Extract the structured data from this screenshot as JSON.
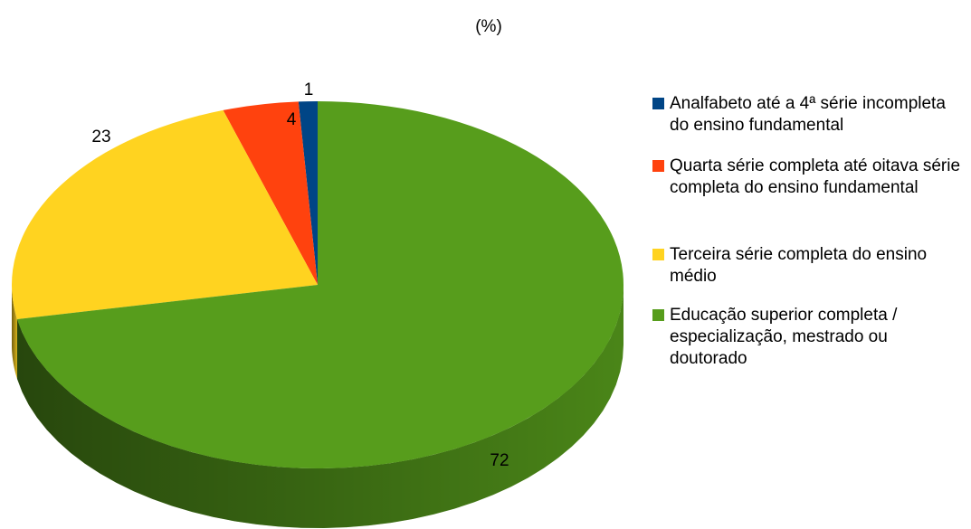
{
  "chart_data": {
    "type": "pie3d",
    "title": "(%)",
    "categories": [
      "Analfabeto até a 4ª série incompleta do ensino fundamental",
      "Quarta série completa até oitava série completa do ensino fundamental",
      "Terceira série completa do ensino médio",
      "Educação superior completa / especialização, mestrado ou doutorado"
    ],
    "values": [
      1,
      4,
      23,
      72
    ],
    "colors": [
      "#004586",
      "#ff420e",
      "#ffd320",
      "#579d1c"
    ],
    "legend": "right"
  }
}
